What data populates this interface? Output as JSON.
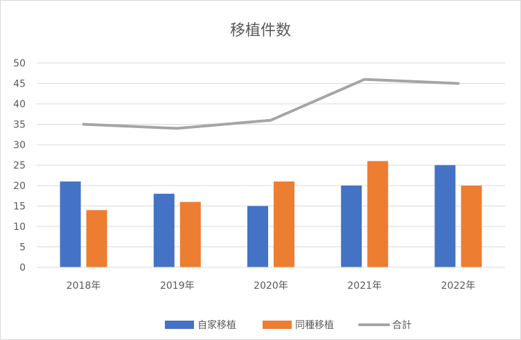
{
  "chart_data": {
    "type": "bar",
    "title": "移植件数",
    "xlabel": "",
    "ylabel": "",
    "categories": [
      "2018年",
      "2019年",
      "2020年",
      "2021年",
      "2022年"
    ],
    "ylim": [
      0,
      50
    ],
    "yticks": [
      0,
      5,
      10,
      15,
      20,
      25,
      30,
      35,
      40,
      45,
      50
    ],
    "grid": true,
    "legend_position": "bottom",
    "series": [
      {
        "name": "自家移植",
        "type": "bar",
        "color": "#4472c4",
        "values": [
          21,
          18,
          15,
          20,
          25
        ]
      },
      {
        "name": "同種移植",
        "type": "bar",
        "color": "#ed7d31",
        "values": [
          14,
          16,
          21,
          26,
          20
        ]
      },
      {
        "name": "合計",
        "type": "line",
        "color": "#a5a5a5",
        "values": [
          35,
          34,
          36,
          46,
          45
        ]
      }
    ]
  }
}
